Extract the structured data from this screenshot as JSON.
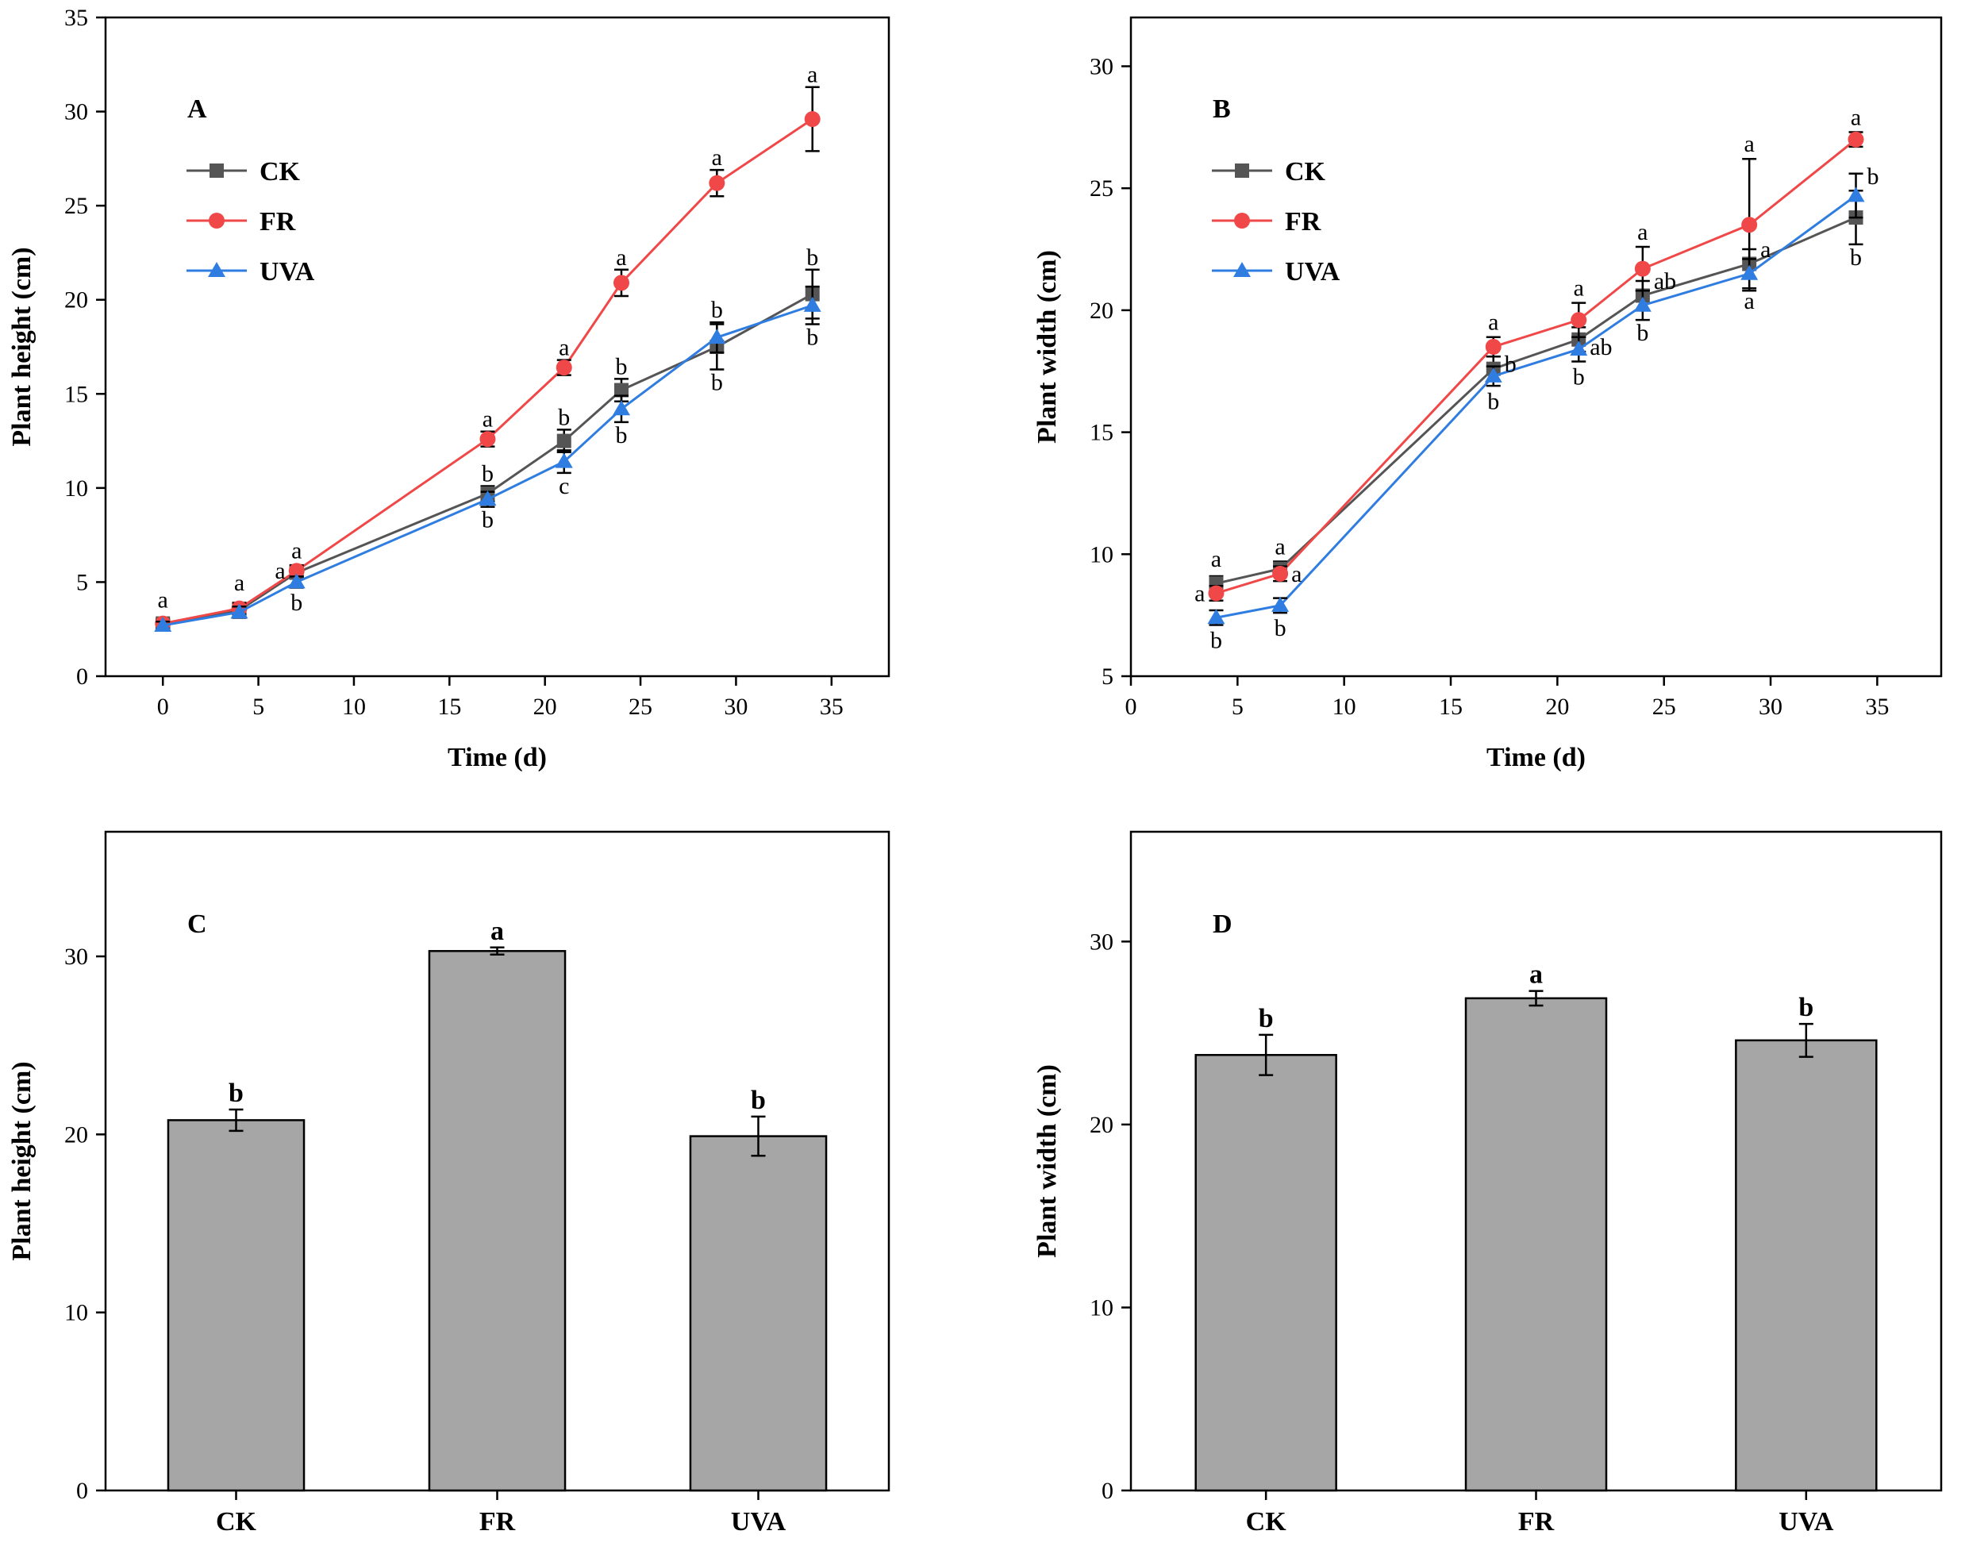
{
  "chart_data": [
    {
      "panel": "A",
      "type": "line",
      "xlabel": "Time (d)",
      "ylabel": "Plant height (cm)",
      "xlim": [
        -3,
        38
      ],
      "ylim": [
        0,
        35
      ],
      "xticks": [
        0,
        5,
        10,
        15,
        20,
        25,
        30,
        35
      ],
      "yticks": [
        0,
        5,
        10,
        15,
        20,
        25,
        30,
        35
      ],
      "legend_position": "top-left",
      "x": [
        0,
        4,
        7,
        17,
        21,
        24,
        29,
        34
      ],
      "series": [
        {
          "name": "CK",
          "color": "#555555",
          "marker": "square",
          "values": [
            2.8,
            3.5,
            5.5,
            9.7,
            12.5,
            15.2,
            17.5,
            20.3
          ],
          "errors": [
            0.2,
            0.3,
            0.3,
            0.4,
            0.6,
            0.6,
            1.2,
            1.3
          ]
        },
        {
          "name": "FR",
          "color": "#f04848",
          "marker": "circle",
          "values": [
            2.8,
            3.6,
            5.6,
            12.6,
            16.4,
            20.9,
            26.2,
            29.6
          ],
          "errors": [
            0.2,
            0.3,
            0.3,
            0.4,
            0.4,
            0.7,
            0.7,
            1.7
          ]
        },
        {
          "name": "UVA",
          "color": "#2f7de1",
          "marker": "triangle",
          "values": [
            2.7,
            3.4,
            5.0,
            9.4,
            11.4,
            14.2,
            18.0,
            19.7
          ],
          "errors": [
            0.2,
            0.3,
            0.3,
            0.4,
            0.6,
            0.7,
            0.8,
            1.0
          ]
        }
      ],
      "annotations": [
        {
          "x": 0,
          "y": 3.4,
          "text": "a",
          "pos": "above"
        },
        {
          "x": 4,
          "y": 4.3,
          "text": "a",
          "pos": "above"
        },
        {
          "x": 7,
          "y": 6.0,
          "text": "a",
          "pos": "above"
        },
        {
          "x": 7,
          "y": 5.6,
          "text": "a",
          "pos": "left"
        },
        {
          "x": 7,
          "y": 4.6,
          "text": "b",
          "pos": "below"
        },
        {
          "x": 17,
          "y": 13.0,
          "text": "a",
          "pos": "above"
        },
        {
          "x": 17,
          "y": 10.1,
          "text": "b",
          "pos": "above"
        },
        {
          "x": 17,
          "y": 9.0,
          "text": "b",
          "pos": "below"
        },
        {
          "x": 21,
          "y": 16.8,
          "text": "a",
          "pos": "above"
        },
        {
          "x": 21,
          "y": 13.1,
          "text": "b",
          "pos": "above"
        },
        {
          "x": 21,
          "y": 10.8,
          "text": "c",
          "pos": "below"
        },
        {
          "x": 24,
          "y": 21.6,
          "text": "a",
          "pos": "above"
        },
        {
          "x": 24,
          "y": 15.8,
          "text": "b",
          "pos": "above"
        },
        {
          "x": 24,
          "y": 13.5,
          "text": "b",
          "pos": "below"
        },
        {
          "x": 29,
          "y": 26.9,
          "text": "a",
          "pos": "above"
        },
        {
          "x": 29,
          "y": 18.8,
          "text": "b",
          "pos": "above"
        },
        {
          "x": 29,
          "y": 16.3,
          "text": "b",
          "pos": "below"
        },
        {
          "x": 34,
          "y": 31.3,
          "text": "a",
          "pos": "above"
        },
        {
          "x": 34,
          "y": 21.6,
          "text": "b",
          "pos": "above"
        },
        {
          "x": 34,
          "y": 18.7,
          "text": "b",
          "pos": "below"
        }
      ]
    },
    {
      "panel": "B",
      "type": "line",
      "xlabel": "Time (d)",
      "ylabel": "Plant width (cm)",
      "xlim": [
        0,
        38
      ],
      "ylim": [
        5,
        32
      ],
      "xticks": [
        0,
        5,
        10,
        15,
        20,
        25,
        30,
        35
      ],
      "yticks": [
        5,
        10,
        15,
        20,
        25,
        30
      ],
      "legend_position": "top-left",
      "x": [
        4,
        7,
        17,
        21,
        24,
        29,
        34
      ],
      "series": [
        {
          "name": "CK",
          "color": "#555555",
          "marker": "square",
          "values": [
            8.8,
            9.4,
            17.6,
            18.8,
            20.6,
            21.9,
            23.8
          ],
          "errors": [
            0.3,
            0.3,
            0.5,
            0.5,
            0.6,
            0.6,
            1.1
          ]
        },
        {
          "name": "FR",
          "color": "#f04848",
          "marker": "circle",
          "values": [
            8.4,
            9.2,
            18.5,
            19.6,
            21.7,
            23.5,
            27.0
          ],
          "errors": [
            0.3,
            0.3,
            0.4,
            0.7,
            0.9,
            2.7,
            0.3
          ]
        },
        {
          "name": "UVA",
          "color": "#2f7de1",
          "marker": "triangle",
          "values": [
            7.4,
            7.9,
            17.3,
            18.4,
            20.2,
            21.5,
            24.7
          ],
          "errors": [
            0.3,
            0.3,
            0.4,
            0.5,
            0.6,
            0.6,
            0.9
          ]
        }
      ],
      "annotations": [
        {
          "x": 4,
          "y": 9.3,
          "text": "a",
          "pos": "above"
        },
        {
          "x": 4,
          "y": 8.4,
          "text": "a",
          "pos": "left"
        },
        {
          "x": 4,
          "y": 7.0,
          "text": "b",
          "pos": "below"
        },
        {
          "x": 7,
          "y": 9.8,
          "text": "a",
          "pos": "above"
        },
        {
          "x": 7,
          "y": 9.2,
          "text": "a",
          "pos": "right"
        },
        {
          "x": 7,
          "y": 7.5,
          "text": "b",
          "pos": "below"
        },
        {
          "x": 17,
          "y": 19.0,
          "text": "a",
          "pos": "above"
        },
        {
          "x": 17,
          "y": 17.8,
          "text": "b",
          "pos": "right"
        },
        {
          "x": 17,
          "y": 16.8,
          "text": "b",
          "pos": "below"
        },
        {
          "x": 21,
          "y": 20.4,
          "text": "a",
          "pos": "above"
        },
        {
          "x": 21,
          "y": 18.5,
          "text": "ab",
          "pos": "right"
        },
        {
          "x": 21,
          "y": 17.8,
          "text": "b",
          "pos": "below"
        },
        {
          "x": 24,
          "y": 22.7,
          "text": "a",
          "pos": "above"
        },
        {
          "x": 24,
          "y": 21.2,
          "text": "ab",
          "pos": "right"
        },
        {
          "x": 24,
          "y": 19.6,
          "text": "b",
          "pos": "below"
        },
        {
          "x": 29,
          "y": 26.3,
          "text": "a",
          "pos": "above"
        },
        {
          "x": 29,
          "y": 22.5,
          "text": "a",
          "pos": "right"
        },
        {
          "x": 29,
          "y": 20.9,
          "text": "a",
          "pos": "below"
        },
        {
          "x": 34,
          "y": 27.4,
          "text": "a",
          "pos": "above"
        },
        {
          "x": 34,
          "y": 25.5,
          "text": "b",
          "pos": "right"
        },
        {
          "x": 34,
          "y": 22.7,
          "text": "b",
          "pos": "below"
        }
      ]
    },
    {
      "panel": "C",
      "type": "bar",
      "ylabel": "Plant height (cm)",
      "ylim": [
        0,
        37
      ],
      "yticks": [
        0,
        10,
        20,
        30
      ],
      "categories": [
        "CK",
        "FR",
        "UVA"
      ],
      "values": [
        20.8,
        30.3,
        19.9
      ],
      "errors": [
        0.6,
        0.2,
        1.1
      ],
      "significance": [
        "b",
        "a",
        "b"
      ],
      "bar_color": "#a6a6a6"
    },
    {
      "panel": "D",
      "type": "bar",
      "ylabel": "Plant width (cm)",
      "ylim": [
        0,
        36
      ],
      "yticks": [
        0,
        10,
        20,
        30
      ],
      "categories": [
        "CK",
        "FR",
        "UVA"
      ],
      "values": [
        23.8,
        26.9,
        24.6
      ],
      "errors": [
        1.1,
        0.4,
        0.9
      ],
      "significance": [
        "b",
        "a",
        "b"
      ],
      "bar_color": "#a6a6a6"
    }
  ]
}
